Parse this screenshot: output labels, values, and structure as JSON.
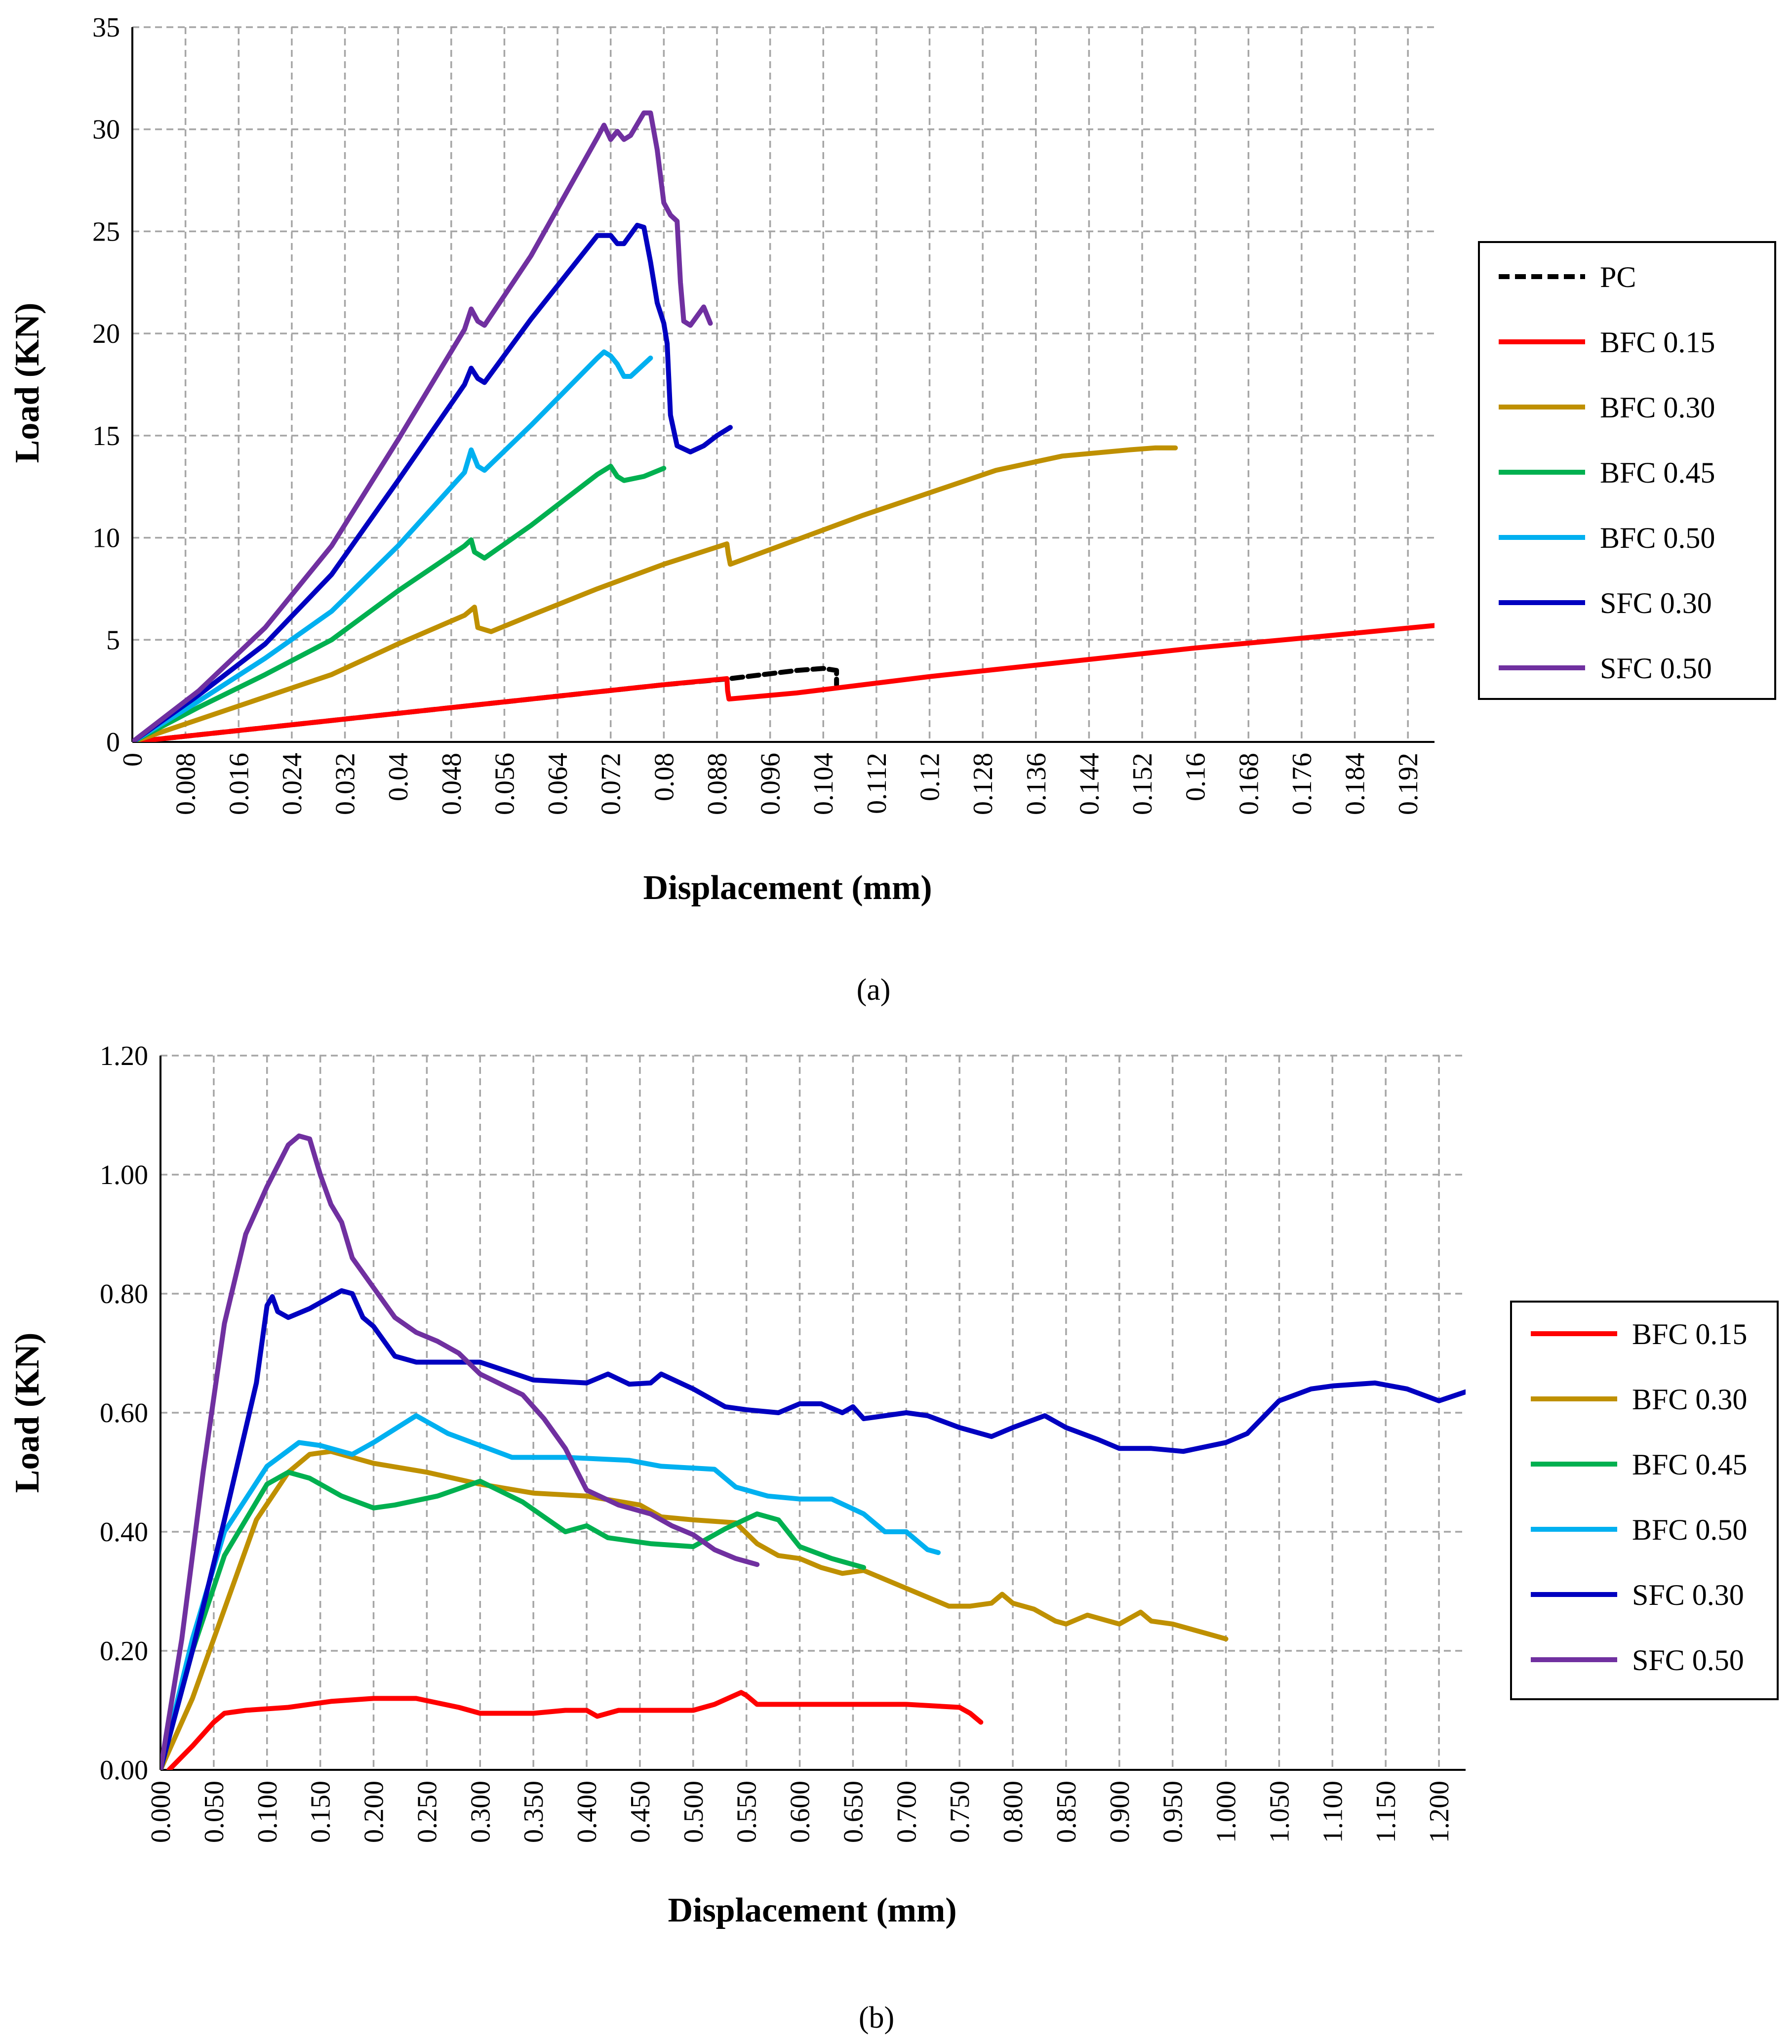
{
  "chart_data": [
    {
      "type": "line",
      "caption": "(a)",
      "xlabel": "Displacement (mm)",
      "ylabel": "Load (KN)",
      "xlim": [
        0,
        0.196
      ],
      "ylim": [
        0,
        35
      ],
      "xticks": [
        "0",
        "0.008",
        "0.016",
        "0.024",
        "0.032",
        "0.04",
        "0.048",
        "0.056",
        "0.064",
        "0.072",
        "0.08",
        "0.088",
        "0.096",
        "0.104",
        "0.112",
        "0.12",
        "0.128",
        "0.136",
        "0.144",
        "0.152",
        "0.16",
        "0.168",
        "0.176",
        "0.184",
        "0.192"
      ],
      "yticks": [
        "0",
        "5",
        "10",
        "15",
        "20",
        "25",
        "30",
        "35"
      ],
      "grid": true,
      "legend": "right",
      "series": [
        {
          "name": "PC",
          "color": "#000000",
          "dash": true,
          "x": [
            0,
            0.02,
            0.04,
            0.06,
            0.08,
            0.09,
            0.1,
            0.104,
            0.106,
            0.106
          ],
          "y": [
            0,
            0.7,
            1.4,
            2.1,
            2.8,
            3.1,
            3.5,
            3.6,
            3.5,
            2.8
          ]
        },
        {
          "name": "BFC 0.15",
          "color": "#ff0000",
          "x": [
            0,
            0.02,
            0.04,
            0.06,
            0.08,
            0.0895,
            0.0896,
            0.0898,
            0.1,
            0.12,
            0.14,
            0.16,
            0.18,
            0.196
          ],
          "y": [
            0,
            0.7,
            1.4,
            2.1,
            2.8,
            3.1,
            2.5,
            2.1,
            2.4,
            3.2,
            3.9,
            4.6,
            5.2,
            5.7
          ]
        },
        {
          "name": "BFC 0.30",
          "color": "#bf9000",
          "x": [
            0,
            0.01,
            0.02,
            0.03,
            0.04,
            0.05,
            0.0515,
            0.052,
            0.054,
            0.06,
            0.07,
            0.08,
            0.0895,
            0.0897,
            0.09,
            0.1,
            0.11,
            0.12,
            0.13,
            0.14,
            0.15,
            0.154,
            0.157
          ],
          "y": [
            0,
            1.1,
            2.2,
            3.3,
            4.8,
            6.2,
            6.6,
            5.6,
            5.4,
            6.2,
            7.5,
            8.7,
            9.7,
            9.2,
            8.7,
            9.9,
            11.1,
            12.2,
            13.3,
            14.0,
            14.3,
            14.4,
            14.4
          ]
        },
        {
          "name": "BFC 0.45",
          "color": "#00b050",
          "x": [
            0,
            0.01,
            0.02,
            0.03,
            0.04,
            0.05,
            0.051,
            0.0515,
            0.053,
            0.06,
            0.07,
            0.072,
            0.073,
            0.074,
            0.077,
            0.08
          ],
          "y": [
            0,
            1.7,
            3.3,
            5.0,
            7.4,
            9.6,
            9.9,
            9.3,
            9.0,
            10.6,
            13.1,
            13.5,
            13.0,
            12.8,
            13.0,
            13.4
          ]
        },
        {
          "name": "BFC 0.50",
          "color": "#00b0f0",
          "x": [
            0,
            0.01,
            0.02,
            0.03,
            0.04,
            0.05,
            0.051,
            0.052,
            0.053,
            0.06,
            0.07,
            0.071,
            0.072,
            0.073,
            0.074,
            0.075,
            0.078
          ],
          "y": [
            0,
            2.0,
            4.1,
            6.4,
            9.6,
            13.2,
            14.3,
            13.5,
            13.3,
            15.5,
            18.8,
            19.1,
            18.9,
            18.5,
            17.9,
            17.9,
            18.8
          ]
        },
        {
          "name": "SFC 0.30",
          "color": "#0000c0",
          "x": [
            0,
            0.01,
            0.02,
            0.03,
            0.04,
            0.05,
            0.051,
            0.052,
            0.053,
            0.06,
            0.07,
            0.072,
            0.073,
            0.074,
            0.076,
            0.077,
            0.078,
            0.079,
            0.08,
            0.0805,
            0.081,
            0.082,
            0.084,
            0.086,
            0.088,
            0.09
          ],
          "y": [
            0,
            2.3,
            4.8,
            8.2,
            12.8,
            17.5,
            18.3,
            17.8,
            17.6,
            20.7,
            24.8,
            24.8,
            24.4,
            24.4,
            25.3,
            25.2,
            23.5,
            21.5,
            20.5,
            19.5,
            16.0,
            14.5,
            14.2,
            14.5,
            15.0,
            15.4
          ]
        },
        {
          "name": "SFC 0.50",
          "color": "#7030a0",
          "x": [
            0,
            0.01,
            0.02,
            0.03,
            0.04,
            0.05,
            0.051,
            0.052,
            0.053,
            0.06,
            0.07,
            0.071,
            0.072,
            0.073,
            0.074,
            0.075,
            0.077,
            0.078,
            0.079,
            0.08,
            0.081,
            0.082,
            0.0825,
            0.083,
            0.084,
            0.086,
            0.087
          ],
          "y": [
            0,
            2.5,
            5.6,
            9.6,
            14.8,
            20.2,
            21.2,
            20.6,
            20.4,
            23.8,
            29.6,
            30.2,
            29.5,
            29.9,
            29.5,
            29.7,
            30.8,
            30.8,
            29.0,
            26.4,
            25.8,
            25.5,
            22.5,
            20.6,
            20.4,
            21.3,
            20.5
          ]
        }
      ]
    },
    {
      "type": "line",
      "caption": "(b)",
      "xlabel": "Displacement (mm)",
      "ylabel": "Load (KN)",
      "xlim": [
        0,
        1.225
      ],
      "ylim": [
        0,
        1.2
      ],
      "xticks": [
        "0.000",
        "0.050",
        "0.100",
        "0.150",
        "0.200",
        "0.250",
        "0.300",
        "0.350",
        "0.400",
        "0.450",
        "0.500",
        "0.550",
        "0.600",
        "0.650",
        "0.700",
        "0.750",
        "0.800",
        "0.850",
        "0.900",
        "0.950",
        "1.000",
        "1.050",
        "1.100",
        "1.150",
        "1.200"
      ],
      "yticks": [
        "0.00",
        "0.20",
        "0.40",
        "0.60",
        "0.80",
        "1.00",
        "1.20"
      ],
      "grid": true,
      "legend": "right",
      "series": [
        {
          "name": "BFC 0.15",
          "color": "#ff0000",
          "x": [
            0.008,
            0.03,
            0.05,
            0.06,
            0.08,
            0.12,
            0.16,
            0.2,
            0.24,
            0.28,
            0.3,
            0.35,
            0.38,
            0.4,
            0.41,
            0.43,
            0.5,
            0.52,
            0.545,
            0.55,
            0.56,
            0.6,
            0.7,
            0.75,
            0.76,
            0.77
          ],
          "y": [
            0.0,
            0.04,
            0.08,
            0.095,
            0.1,
            0.105,
            0.115,
            0.12,
            0.12,
            0.105,
            0.095,
            0.095,
            0.1,
            0.1,
            0.09,
            0.1,
            0.1,
            0.11,
            0.13,
            0.125,
            0.11,
            0.11,
            0.11,
            0.105,
            0.095,
            0.08
          ]
        },
        {
          "name": "BFC 0.30",
          "color": "#bf9000",
          "x": [
            0,
            0.03,
            0.06,
            0.09,
            0.12,
            0.14,
            0.16,
            0.2,
            0.25,
            0.3,
            0.35,
            0.4,
            0.45,
            0.47,
            0.5,
            0.54,
            0.56,
            0.58,
            0.6,
            0.62,
            0.64,
            0.66,
            0.7,
            0.74,
            0.76,
            0.78,
            0.79,
            0.8,
            0.82,
            0.84,
            0.85,
            0.87,
            0.9,
            0.92,
            0.93,
            0.95,
            0.98,
            1.0
          ],
          "y": [
            0,
            0.12,
            0.27,
            0.42,
            0.5,
            0.53,
            0.535,
            0.515,
            0.5,
            0.48,
            0.465,
            0.46,
            0.445,
            0.425,
            0.42,
            0.415,
            0.38,
            0.36,
            0.355,
            0.34,
            0.33,
            0.335,
            0.305,
            0.275,
            0.275,
            0.28,
            0.295,
            0.28,
            0.27,
            0.25,
            0.245,
            0.26,
            0.245,
            0.265,
            0.25,
            0.245,
            0.23,
            0.22
          ]
        },
        {
          "name": "BFC 0.45",
          "color": "#00b050",
          "x": [
            0,
            0.03,
            0.06,
            0.1,
            0.12,
            0.14,
            0.17,
            0.2,
            0.22,
            0.26,
            0.3,
            0.34,
            0.38,
            0.4,
            0.42,
            0.46,
            0.5,
            0.53,
            0.56,
            0.58,
            0.6,
            0.63,
            0.66
          ],
          "y": [
            0,
            0.2,
            0.36,
            0.48,
            0.5,
            0.49,
            0.46,
            0.44,
            0.445,
            0.46,
            0.485,
            0.45,
            0.4,
            0.41,
            0.39,
            0.38,
            0.375,
            0.405,
            0.43,
            0.42,
            0.375,
            0.355,
            0.34
          ]
        },
        {
          "name": "BFC 0.50",
          "color": "#00b0f0",
          "x": [
            0,
            0.03,
            0.06,
            0.1,
            0.13,
            0.15,
            0.18,
            0.2,
            0.24,
            0.25,
            0.27,
            0.3,
            0.33,
            0.38,
            0.44,
            0.47,
            0.52,
            0.54,
            0.57,
            0.6,
            0.63,
            0.66,
            0.68,
            0.7,
            0.72,
            0.73
          ],
          "y": [
            0,
            0.22,
            0.4,
            0.51,
            0.55,
            0.545,
            0.53,
            0.55,
            0.595,
            0.585,
            0.565,
            0.545,
            0.525,
            0.525,
            0.52,
            0.51,
            0.505,
            0.475,
            0.46,
            0.455,
            0.455,
            0.43,
            0.4,
            0.4,
            0.37,
            0.365
          ]
        },
        {
          "name": "SFC 0.30",
          "color": "#0000c0",
          "x": [
            0,
            0.03,
            0.06,
            0.09,
            0.1,
            0.105,
            0.11,
            0.12,
            0.14,
            0.17,
            0.18,
            0.19,
            0.2,
            0.22,
            0.24,
            0.27,
            0.3,
            0.35,
            0.4,
            0.42,
            0.44,
            0.46,
            0.47,
            0.5,
            0.53,
            0.55,
            0.58,
            0.6,
            0.62,
            0.64,
            0.65,
            0.66,
            0.7,
            0.72,
            0.75,
            0.78,
            0.8,
            0.83,
            0.85,
            0.88,
            0.9,
            0.93,
            0.96,
            1.0,
            1.02,
            1.05,
            1.08,
            1.1,
            1.14,
            1.17,
            1.2,
            1.225
          ],
          "y": [
            0,
            0.2,
            0.42,
            0.65,
            0.78,
            0.795,
            0.77,
            0.76,
            0.775,
            0.805,
            0.8,
            0.76,
            0.745,
            0.695,
            0.685,
            0.685,
            0.685,
            0.655,
            0.65,
            0.665,
            0.648,
            0.65,
            0.665,
            0.64,
            0.61,
            0.605,
            0.6,
            0.615,
            0.615,
            0.6,
            0.61,
            0.59,
            0.6,
            0.595,
            0.575,
            0.56,
            0.575,
            0.595,
            0.575,
            0.555,
            0.54,
            0.54,
            0.535,
            0.55,
            0.565,
            0.62,
            0.64,
            0.645,
            0.65,
            0.64,
            0.62,
            0.635
          ]
        },
        {
          "name": "SFC 0.50",
          "color": "#7030a0",
          "x": [
            0,
            0.02,
            0.04,
            0.06,
            0.08,
            0.1,
            0.12,
            0.13,
            0.14,
            0.15,
            0.16,
            0.17,
            0.18,
            0.2,
            0.22,
            0.24,
            0.26,
            0.28,
            0.3,
            0.34,
            0.36,
            0.38,
            0.4,
            0.43,
            0.46,
            0.48,
            0.5,
            0.52,
            0.54,
            0.56
          ],
          "y": [
            0,
            0.22,
            0.5,
            0.75,
            0.9,
            0.98,
            1.05,
            1.065,
            1.06,
            1.0,
            0.95,
            0.92,
            0.86,
            0.81,
            0.76,
            0.735,
            0.72,
            0.7,
            0.665,
            0.63,
            0.59,
            0.54,
            0.47,
            0.445,
            0.43,
            0.41,
            0.395,
            0.37,
            0.355,
            0.345
          ]
        }
      ]
    }
  ]
}
